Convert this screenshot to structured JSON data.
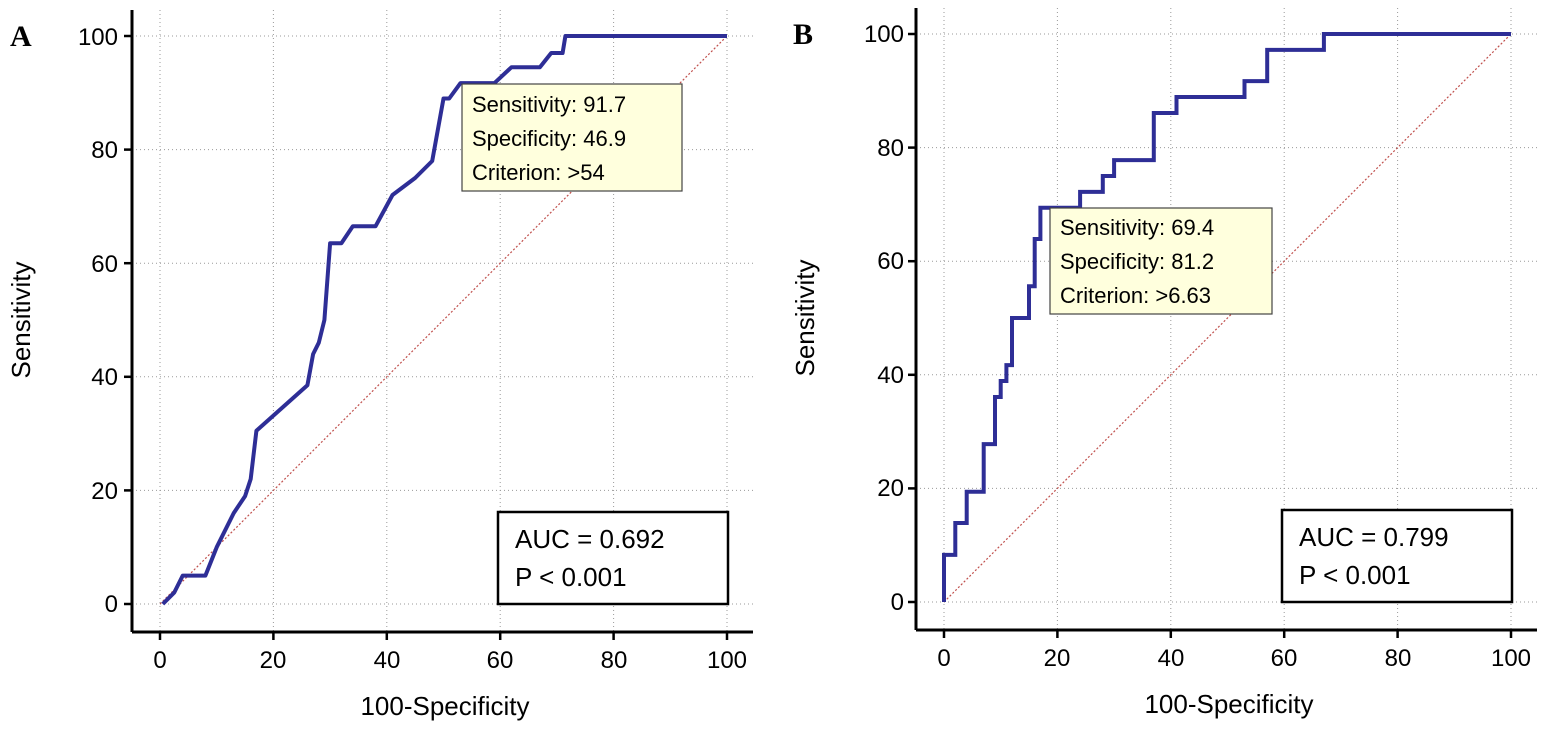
{
  "figure": {
    "panels": [
      "A",
      "B"
    ]
  },
  "chart_data": [
    {
      "type": "line",
      "panel_label": "A",
      "xlabel": "100-Specificity",
      "ylabel": "Sensitivity",
      "xlim": [
        0,
        100
      ],
      "ylim": [
        0,
        100
      ],
      "xticks": [
        0,
        20,
        40,
        60,
        80,
        100
      ],
      "yticks": [
        0,
        20,
        40,
        60,
        80,
        100
      ],
      "grid": true,
      "series": [
        {
          "name": "ROC curve",
          "color": "#2e2e96",
          "x": [
            0.5,
            2.5,
            4,
            6,
            8,
            10,
            13,
            15,
            16,
            17,
            26,
            27,
            28,
            29,
            30,
            32,
            34,
            38,
            41,
            45,
            48,
            50,
            51,
            53,
            55,
            57,
            59,
            62,
            64,
            67,
            69,
            71,
            71.5,
            100
          ],
          "y": [
            0,
            2,
            5,
            5,
            5,
            10,
            16,
            19,
            22,
            30.5,
            38.5,
            44,
            46,
            50,
            63.5,
            63.5,
            66.5,
            66.5,
            72,
            75,
            78,
            89,
            89,
            91.7,
            91.7,
            91.7,
            91.7,
            94.5,
            94.5,
            94.5,
            97,
            97,
            100,
            100
          ]
        },
        {
          "name": "reference line",
          "color": "#c0504d",
          "x": [
            0,
            100
          ],
          "y": [
            0,
            100
          ]
        }
      ],
      "annotation": {
        "lines": [
          "Sensitivity: 91.7",
          "Specificity: 46.9",
          "Criterion: >54"
        ],
        "fill": "#ffffdd"
      },
      "auc_box": {
        "lines": [
          "AUC = 0.692",
          "P < 0.001"
        ]
      }
    },
    {
      "type": "line",
      "panel_label": "B",
      "xlabel": "100-Specificity",
      "ylabel": "Sensitivity",
      "xlim": [
        0,
        100
      ],
      "ylim": [
        0,
        100
      ],
      "xticks": [
        0,
        20,
        40,
        60,
        80,
        100
      ],
      "yticks": [
        0,
        20,
        40,
        60,
        80,
        100
      ],
      "grid": true,
      "series": [
        {
          "name": "ROC curve",
          "color": "#2e2e96",
          "x": [
            0,
            0,
            2,
            2,
            4,
            4,
            7,
            7,
            9,
            9,
            10,
            10,
            11,
            11,
            12,
            12,
            15,
            15,
            16,
            16,
            17,
            17,
            19,
            19,
            21,
            21,
            24,
            24,
            25,
            25,
            28,
            28,
            30,
            30,
            32,
            32,
            37,
            37,
            41,
            41,
            47,
            53,
            53,
            57,
            57,
            62,
            62,
            67,
            67,
            100
          ],
          "y": [
            0,
            8.3,
            8.3,
            13.9,
            13.9,
            19.4,
            19.4,
            27.8,
            27.8,
            36.1,
            36.1,
            38.9,
            38.9,
            41.7,
            41.7,
            50,
            50,
            55.6,
            55.6,
            63.9,
            63.9,
            69.4,
            69.4,
            69.4,
            69.4,
            69.4,
            69.4,
            72.2,
            72.2,
            72.2,
            72.2,
            75,
            75,
            77.8,
            77.8,
            77.8,
            77.8,
            86.1,
            86.1,
            88.9,
            88.9,
            88.9,
            91.7,
            91.7,
            97.2,
            97.2,
            97.2,
            97.2,
            100,
            100
          ]
        },
        {
          "name": "reference line",
          "color": "#c0504d",
          "x": [
            0,
            100
          ],
          "y": [
            0,
            100
          ]
        }
      ],
      "annotation": {
        "lines": [
          "Sensitivity: 69.4",
          "Specificity: 81.2",
          "Criterion: >6.63"
        ],
        "fill": "#ffffdd"
      },
      "auc_box": {
        "lines": [
          "AUC = 0.799",
          "P < 0.001"
        ]
      }
    }
  ]
}
